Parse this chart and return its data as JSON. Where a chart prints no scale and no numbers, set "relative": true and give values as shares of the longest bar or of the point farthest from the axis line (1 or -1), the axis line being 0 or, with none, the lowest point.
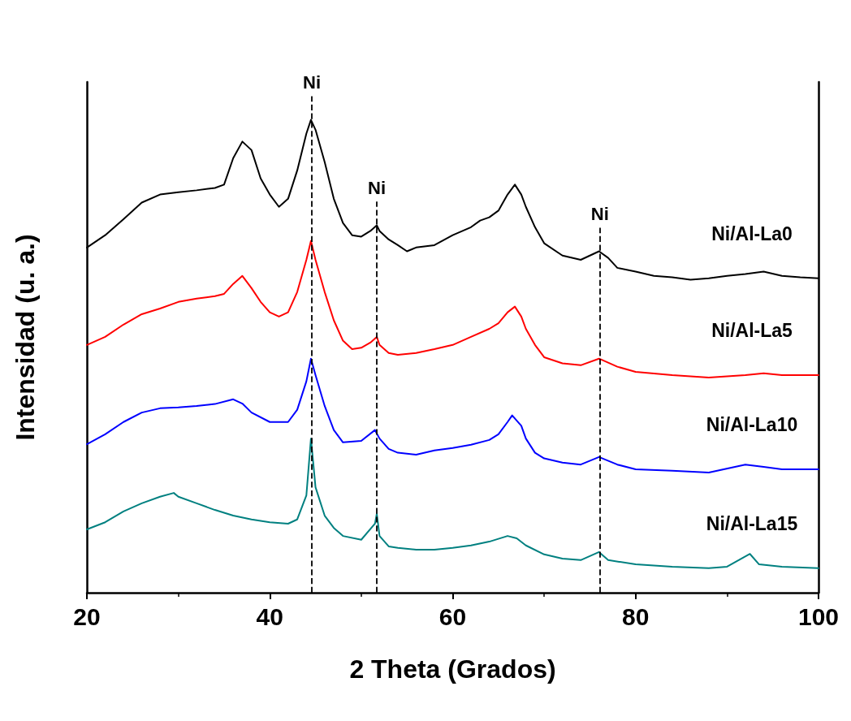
{
  "chart_data": {
    "type": "line",
    "xlabel": "2 Theta (Grados)",
    "ylabel": "Intensidad (u. a.)",
    "relative": true,
    "xlim": [
      20,
      100
    ],
    "xticks": [
      20,
      40,
      60,
      80,
      100
    ],
    "grid": false,
    "legend": false,
    "marker": "none",
    "line_style": "solid",
    "tick_labels": "x",
    "ref_lines": [
      {
        "axis": "x",
        "value": 44.6,
        "label": "Ni",
        "color": "#000000",
        "line_style": "dashed"
      },
      {
        "axis": "x",
        "value": 51.7,
        "label": "Ni",
        "color": "#000000",
        "line_style": "dashed"
      },
      {
        "axis": "x",
        "value": 76.1,
        "label": "Ni",
        "color": "#000000",
        "line_style": "dashed"
      }
    ],
    "series": [
      {
        "name": "Ni/Al-La0",
        "color": "#000000",
        "x": [
          20,
          22,
          24,
          26,
          28,
          30,
          32,
          34,
          35,
          36,
          37,
          38,
          39,
          40,
          41,
          42,
          43,
          44,
          44.5,
          45,
          46,
          47,
          48,
          49,
          50,
          51,
          51.7,
          52,
          53,
          54,
          55,
          56,
          58,
          60,
          62,
          63,
          64,
          65,
          66,
          66.8,
          67.5,
          68,
          69,
          70,
          72,
          74,
          76,
          77,
          78,
          80,
          82,
          84,
          86,
          88,
          90,
          92,
          94,
          96,
          98,
          100
        ],
        "values": [
          0.73,
          0.756,
          0.79,
          0.825,
          0.842,
          0.847,
          0.851,
          0.856,
          0.863,
          0.919,
          0.954,
          0.936,
          0.876,
          0.842,
          0.816,
          0.833,
          0.893,
          0.971,
          1.0,
          0.979,
          0.911,
          0.833,
          0.782,
          0.756,
          0.753,
          0.765,
          0.777,
          0.765,
          0.747,
          0.735,
          0.722,
          0.73,
          0.735,
          0.756,
          0.773,
          0.787,
          0.794,
          0.808,
          0.842,
          0.863,
          0.842,
          0.816,
          0.773,
          0.739,
          0.713,
          0.704,
          0.722,
          0.708,
          0.687,
          0.679,
          0.67,
          0.667,
          0.662,
          0.665,
          0.67,
          0.674,
          0.679,
          0.67,
          0.667,
          0.665
        ]
      },
      {
        "name": "Ni/Al-La5",
        "color": "#ff0000",
        "x": [
          20,
          22,
          24,
          26,
          28,
          30,
          32,
          34,
          35,
          36,
          37,
          38,
          39,
          40,
          41,
          42,
          43,
          44,
          44.5,
          45,
          46,
          47,
          48,
          49,
          50,
          51,
          51.7,
          52,
          53,
          54,
          56,
          58,
          60,
          62,
          64,
          65,
          66,
          66.8,
          67.5,
          68,
          69,
          70,
          72,
          74,
          76,
          78,
          80,
          84,
          88,
          92,
          94,
          96,
          100
        ],
        "values": [
          0.524,
          0.541,
          0.567,
          0.589,
          0.601,
          0.615,
          0.622,
          0.627,
          0.632,
          0.653,
          0.67,
          0.644,
          0.615,
          0.593,
          0.584,
          0.593,
          0.636,
          0.704,
          0.744,
          0.704,
          0.636,
          0.576,
          0.533,
          0.515,
          0.518,
          0.529,
          0.541,
          0.524,
          0.507,
          0.503,
          0.507,
          0.515,
          0.524,
          0.541,
          0.558,
          0.57,
          0.593,
          0.605,
          0.584,
          0.558,
          0.524,
          0.498,
          0.485,
          0.481,
          0.495,
          0.478,
          0.467,
          0.46,
          0.455,
          0.46,
          0.464,
          0.46,
          0.46
        ]
      },
      {
        "name": "Ni/Al-La10",
        "color": "#0000ff",
        "x": [
          20,
          22,
          24,
          26,
          28,
          30,
          32,
          34,
          36,
          37,
          38,
          40,
          42,
          43,
          44,
          44.5,
          45,
          46,
          47,
          48,
          50,
          51.5,
          52,
          53,
          54,
          56,
          58,
          60,
          62,
          64,
          65,
          66,
          66.5,
          67.5,
          68,
          69,
          70,
          72,
          74,
          76,
          78,
          80,
          84,
          88,
          92,
          94,
          96,
          100
        ],
        "values": [
          0.314,
          0.335,
          0.361,
          0.381,
          0.39,
          0.392,
          0.395,
          0.399,
          0.409,
          0.4,
          0.381,
          0.361,
          0.361,
          0.387,
          0.447,
          0.495,
          0.46,
          0.395,
          0.344,
          0.318,
          0.321,
          0.344,
          0.326,
          0.304,
          0.296,
          0.292,
          0.301,
          0.306,
          0.313,
          0.323,
          0.335,
          0.361,
          0.375,
          0.353,
          0.326,
          0.296,
          0.284,
          0.275,
          0.271,
          0.287,
          0.271,
          0.261,
          0.258,
          0.254,
          0.271,
          0.266,
          0.261,
          0.261
        ]
      },
      {
        "name": "Ni/Al-La15",
        "color": "#008080",
        "x": [
          20,
          22,
          24,
          26,
          28,
          29.5,
          30,
          32,
          34,
          36,
          38,
          40,
          42,
          43,
          44,
          44.5,
          45,
          46,
          47,
          48,
          50,
          51.5,
          51.7,
          52,
          53,
          54,
          56,
          58,
          60,
          62,
          64,
          66,
          67,
          68,
          70,
          72,
          74,
          76,
          77,
          80,
          84,
          88,
          90,
          92.5,
          93.5,
          96,
          100
        ],
        "values": [
          0.134,
          0.149,
          0.172,
          0.189,
          0.203,
          0.211,
          0.203,
          0.189,
          0.175,
          0.163,
          0.155,
          0.149,
          0.146,
          0.155,
          0.206,
          0.326,
          0.223,
          0.163,
          0.137,
          0.12,
          0.112,
          0.146,
          0.167,
          0.12,
          0.098,
          0.095,
          0.091,
          0.091,
          0.095,
          0.1,
          0.108,
          0.12,
          0.115,
          0.1,
          0.081,
          0.072,
          0.069,
          0.086,
          0.069,
          0.06,
          0.055,
          0.052,
          0.055,
          0.082,
          0.06,
          0.055,
          0.052
        ]
      }
    ]
  }
}
